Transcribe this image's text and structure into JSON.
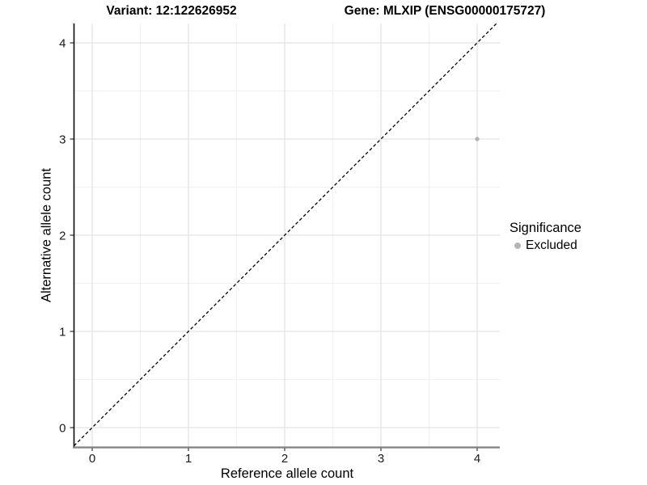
{
  "chart_data": {
    "type": "scatter",
    "titles": {
      "variant": "Variant: 12:122626952",
      "gene": "Gene: MLXIP (ENSG00000175727)"
    },
    "xlabel": "Reference allele count",
    "ylabel": "Alternative allele count",
    "x_ticks": [
      0,
      1,
      2,
      3,
      4
    ],
    "y_ticks": [
      0,
      1,
      2,
      3,
      4
    ],
    "x_minor_ticks": [
      0.5,
      1.5,
      2.5,
      3.5
    ],
    "y_minor_ticks": [
      0.5,
      1.5,
      2.5,
      3.5
    ],
    "xlim": [
      -0.2,
      4.2
    ],
    "ylim": [
      -0.2,
      4.2
    ],
    "grid": "major+minor",
    "points": [
      {
        "x": 4,
        "y": 3,
        "significance": "Excluded"
      }
    ],
    "abline": {
      "slope": 1,
      "intercept": 0,
      "linetype": "dashed"
    },
    "legend": {
      "title": "Significance",
      "position": "right",
      "entries": [
        {
          "label": "Excluded",
          "color": "#b4b4b4"
        }
      ]
    },
    "colors": {
      "point": "#b4b4b4",
      "grid_major": "#e3e3e3",
      "grid_minor": "#f1f1f1",
      "axis_line_y": "#0a0a0a",
      "axis_line_x": "#808080",
      "tick": "#333333",
      "tick_label": "#1a1a1a",
      "abline": "#000000"
    }
  }
}
